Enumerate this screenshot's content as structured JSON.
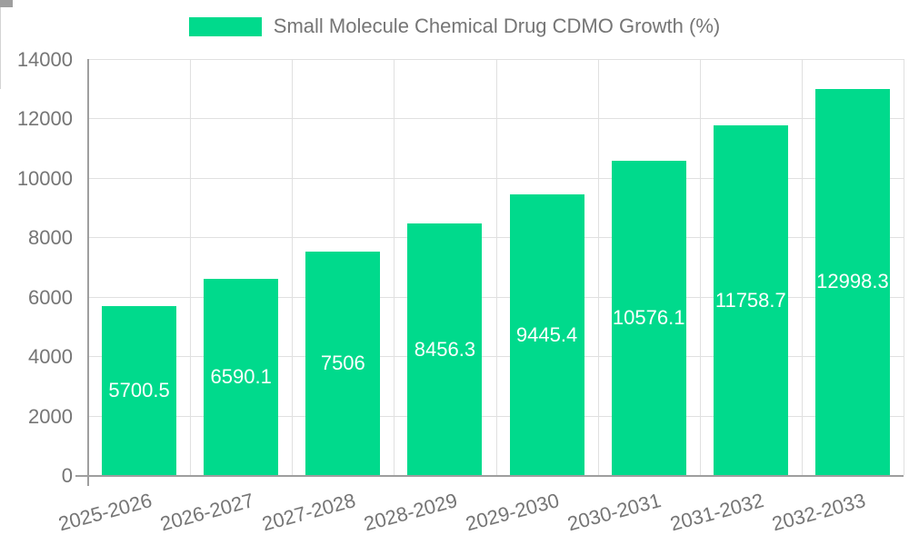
{
  "chart_data": {
    "type": "bar",
    "title": "Small Molecule Chemical Drug CDMO Growth (%)",
    "legend": [
      "Small Molecule Chemical Drug CDMO Growth (%)"
    ],
    "legend_position": "top-center",
    "categories": [
      "2025-2026",
      "2026-2027",
      "2027-2028",
      "2028-2029",
      "2029-2030",
      "2030-2031",
      "2031-2032",
      "2032-2033"
    ],
    "series": [
      {
        "name": "Small Molecule Chemical Drug CDMO Growth (%)",
        "values": [
          5700.5,
          6590.1,
          7506,
          8456.3,
          9445.4,
          10576.1,
          11758.7,
          12998.3
        ],
        "value_labels": [
          "5700.5",
          "6590.1",
          "7506",
          "8456.3",
          "9445.4",
          "10576.1",
          "11758.7",
          "12998.3"
        ]
      }
    ],
    "xlabel": "",
    "ylabel": "",
    "ylim": [
      0,
      14000
    ],
    "yticks": [
      0,
      2000,
      4000,
      6000,
      8000,
      10000,
      12000,
      14000
    ],
    "grid": true
  },
  "colors": {
    "bar": "#00da8c",
    "axis": "#9e9e9e",
    "grid": "#e0e0e0",
    "axis_text": "#757575",
    "value_text": "#ffffff",
    "background": "#ffffff"
  }
}
